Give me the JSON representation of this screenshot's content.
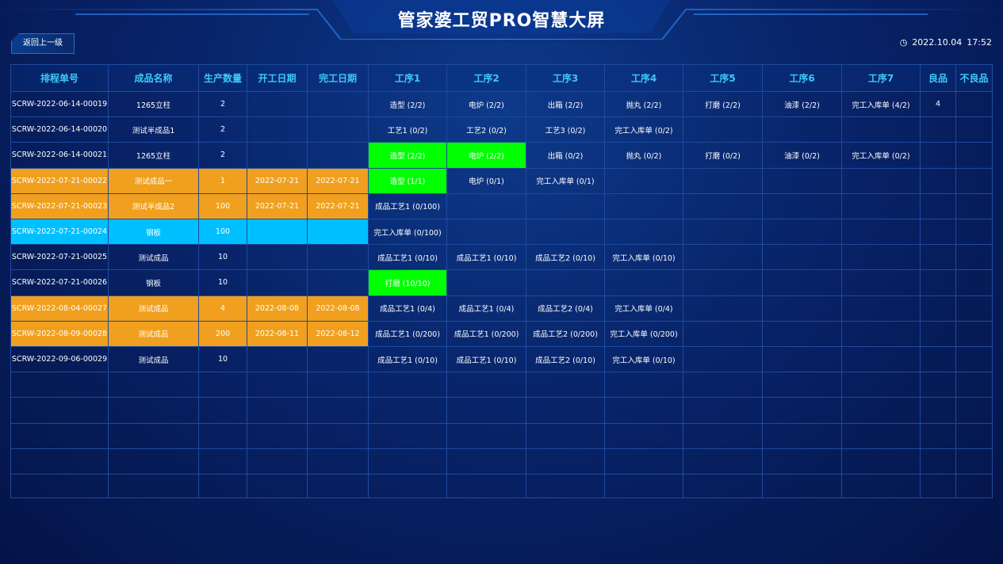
{
  "header": {
    "title": "管家婆工贸PRO智慧大屏",
    "back_button": "返回上一级",
    "date": "2022.10.04",
    "time": "17:52"
  },
  "table": {
    "columns": [
      "排程单号",
      "成品名称",
      "生产数量",
      "开工日期",
      "完工日期",
      "工序1",
      "工序2",
      "工序3",
      "工序4",
      "工序5",
      "工序6",
      "工序7",
      "良品",
      "不良品"
    ],
    "highlight_color": "#00ff00",
    "rows": [
      {
        "cells": [
          "SCRW-2022-06-14-00019",
          "1265立柱",
          2,
          null,
          null,
          "造型 (2/2)",
          "电炉 (2/2)",
          "出箱 (2/2)",
          "抛丸 (2/2)",
          "打磨 (2/2)",
          "油漆 (2/2)",
          "完工入库单 (4/2)",
          4,
          null
        ]
      },
      {
        "cells": [
          "SCRW-2022-06-14-00020",
          "测试半成品1",
          2,
          null,
          null,
          "工艺1 (0/2)",
          "工艺2 (0/2)",
          "工艺3 (0/2)",
          "完工入库单 (0/2)",
          null,
          null,
          null,
          null,
          null
        ]
      },
      {
        "cells": [
          "SCRW-2022-06-14-00021",
          "1265立柱",
          2,
          null,
          null,
          "造型 (2/2)",
          "电炉 (2/2)",
          "出箱 (0/2)",
          "抛丸 (0/2)",
          "打磨 (0/2)",
          "油漆 (0/2)",
          "完工入库单 (0/2)",
          null,
          null
        ],
        "highlight_cells": [
          5,
          6
        ]
      },
      {
        "cells": [
          "SCRW-2022-07-21-00022",
          "测试成品一",
          1,
          "2022-07-21",
          "2022-07-21",
          "造型 (1/1)",
          "电炉 (0/1)",
          "完工入库单 (0/1)",
          null,
          null,
          null,
          null,
          null,
          null
        ],
        "color": "#f0a01e",
        "highlight_cells": [
          5
        ]
      },
      {
        "cells": [
          "SCRW-2022-07-21-00023",
          "测试半成品2",
          100,
          "2022-07-21",
          "2022-07-21",
          "成品工艺1 (0/100)",
          null,
          null,
          null,
          null,
          null,
          null,
          null,
          null
        ],
        "color": "#f0a01e"
      },
      {
        "cells": [
          "SCRW-2022-07-21-00024",
          "钢板",
          100,
          null,
          null,
          "完工入库单 (0/100)",
          null,
          null,
          null,
          null,
          null,
          null,
          null,
          null
        ],
        "color": "#00bfff"
      },
      {
        "cells": [
          "SCRW-2022-07-21-00025",
          "测试成品",
          10,
          null,
          null,
          "成品工艺1 (0/10)",
          "成品工艺1 (0/10)",
          "成品工艺2 (0/10)",
          "完工入库单 (0/10)",
          null,
          null,
          null,
          null,
          null
        ]
      },
      {
        "cells": [
          "SCRW-2022-07-21-00026",
          "钢板",
          10,
          null,
          null,
          "打磨 (10/10)",
          null,
          null,
          null,
          null,
          null,
          null,
          null,
          null
        ],
        "highlight_cells": [
          5
        ]
      },
      {
        "cells": [
          "SCRW-2022-08-04-00027",
          "测试成品",
          4,
          "2022-08-08",
          "2022-08-08",
          "成品工艺1 (0/4)",
          "成品工艺1 (0/4)",
          "成品工艺2 (0/4)",
          "完工入库单 (0/4)",
          null,
          null,
          null,
          null,
          null
        ],
        "color": "#f0a01e"
      },
      {
        "cells": [
          "SCRW-2022-08-09-00028",
          "测试成品",
          200,
          "2022-08-11",
          "2022-08-12",
          "成品工艺1 (0/200)",
          "成品工艺1 (0/200)",
          "成品工艺2 (0/200)",
          "完工入库单 (0/200)",
          null,
          null,
          null,
          null,
          null
        ],
        "color": "#f0a01e"
      },
      {
        "cells": [
          "SCRW-2022-09-06-00029",
          "测试成品",
          10,
          null,
          null,
          "成品工艺1 (0/10)",
          "成品工艺1 (0/10)",
          "成品工艺2 (0/10)",
          "完工入库单 (0/10)",
          null,
          null,
          null,
          null,
          null
        ]
      }
    ]
  }
}
